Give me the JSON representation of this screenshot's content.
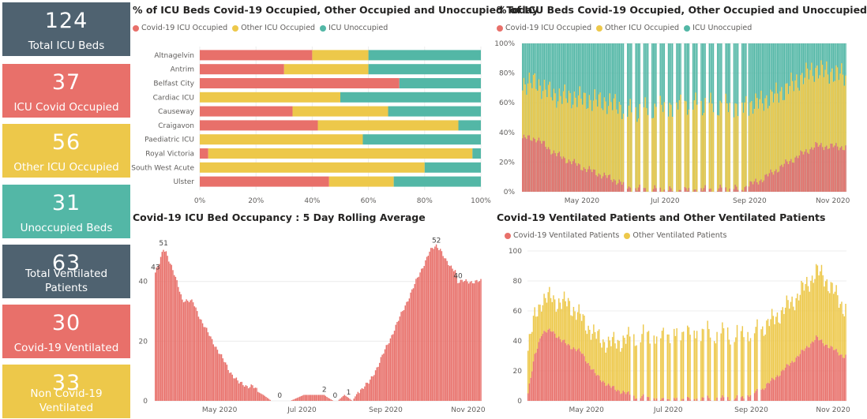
{
  "colors": {
    "covid": "#E8706A",
    "other": "#EDC84A",
    "unoccupied": "#53B7A6",
    "dark": "#4F6270"
  },
  "kpis": [
    {
      "value": "124",
      "label": "Total ICU Beds",
      "color": "#4F6270"
    },
    {
      "value": "37",
      "label": "ICU Covid Occupied",
      "color": "#E8706A"
    },
    {
      "value": "56",
      "label": "Other ICU Occupied",
      "color": "#EDC84A"
    },
    {
      "value": "31",
      "label": "Unoccupied Beds",
      "color": "#53B7A6"
    },
    {
      "value": "63",
      "label": "Total Ventilated Patients",
      "color": "#4F6270"
    },
    {
      "value": "30",
      "label": "Covid-19 Ventilated",
      "color": "#E8706A"
    },
    {
      "value": "33",
      "label": "Non Covid-19 Ventilated",
      "color": "#EDC84A"
    }
  ],
  "chart_data": [
    {
      "type": "bar",
      "orientation": "horizontal",
      "stacked": "100%",
      "title": "% of ICU Beds Covid-19 Occupied, Other Occupied and Unoccupied Today",
      "legend": [
        "Covid-19 ICU Occupied",
        "Other ICU Occupied",
        "ICU Unoccupied"
      ],
      "categories": [
        "Altnagelvin",
        "Antrim",
        "Belfast City",
        "Cardiac ICU",
        "Causeway",
        "Craigavon",
        "Paediatric ICU",
        "Royal Victoria",
        "South West Acute",
        "Ulster"
      ],
      "series": [
        {
          "name": "Covid-19 ICU Occupied",
          "values": [
            40,
            30,
            71,
            0,
            33,
            42,
            0,
            3,
            0,
            46
          ]
        },
        {
          "name": "Other ICU Occupied",
          "values": [
            20,
            30,
            0,
            50,
            34,
            50,
            58,
            94,
            80,
            23
          ]
        },
        {
          "name": "ICU Unoccupied",
          "values": [
            40,
            40,
            29,
            50,
            33,
            8,
            42,
            3,
            20,
            31
          ]
        }
      ],
      "x_ticks": [
        "0%",
        "20%",
        "40%",
        "60%",
        "80%",
        "100%"
      ],
      "xlim": [
        0,
        100
      ],
      "grid": true,
      "legend_position": "top-left"
    },
    {
      "type": "bar",
      "stacked": "100%",
      "title": "% of ICU Beds Covid-19 Occupied, Other Occupied and Unoccupied",
      "legend": [
        "Covid-19 ICU Occupied",
        "Other ICU Occupied",
        "ICU Unoccupied"
      ],
      "x_range": [
        "2020-04-01",
        "2020-11-24"
      ],
      "x_ticks": [
        "May 2020",
        "Jul 2020",
        "Sep 2020",
        "Nov 2020"
      ],
      "y_ticks": [
        "0%",
        "20%",
        "40%",
        "60%",
        "80%",
        "100%"
      ],
      "ylim": [
        0,
        100
      ],
      "series_keypoints": {
        "covid_pct": [
          [
            0,
            36
          ],
          [
            10,
            36
          ],
          [
            25,
            25
          ],
          [
            45,
            16
          ],
          [
            70,
            7
          ],
          [
            80,
            2
          ],
          [
            110,
            1
          ],
          [
            160,
            2
          ],
          [
            175,
            8
          ],
          [
            195,
            20
          ],
          [
            215,
            31
          ],
          [
            238,
            30
          ]
        ],
        "other_pct": [
          [
            0,
            37
          ],
          [
            20,
            38
          ],
          [
            40,
            45
          ],
          [
            60,
            50
          ],
          [
            80,
            52
          ],
          [
            120,
            58
          ],
          [
            160,
            55
          ],
          [
            190,
            50
          ],
          [
            210,
            52
          ],
          [
            238,
            48
          ]
        ]
      },
      "grid": true,
      "legend_position": "top-left"
    },
    {
      "type": "bar",
      "title": "Covid-19 ICU Bed Occupancy : 5 Day Rolling Average",
      "x_range": [
        "2020-03-28",
        "2020-11-24"
      ],
      "x_ticks": [
        "May 2020",
        "Jul 2020",
        "Sep 2020",
        "Nov 2020"
      ],
      "y_ticks": [
        "0",
        "20",
        "40"
      ],
      "ylim": [
        0,
        55
      ],
      "series_keypoints": [
        [
          0,
          43
        ],
        [
          3,
          46
        ],
        [
          6,
          51
        ],
        [
          8,
          50
        ],
        [
          12,
          45
        ],
        [
          18,
          37
        ],
        [
          20,
          34
        ],
        [
          28,
          33
        ],
        [
          35,
          26
        ],
        [
          45,
          18
        ],
        [
          55,
          10
        ],
        [
          62,
          6
        ],
        [
          68,
          5
        ],
        [
          72,
          5
        ],
        [
          76,
          3
        ],
        [
          80,
          2
        ],
        [
          86,
          0
        ],
        [
          100,
          0
        ],
        [
          105,
          1
        ],
        [
          110,
          2
        ],
        [
          120,
          2
        ],
        [
          125,
          2
        ],
        [
          128,
          1
        ],
        [
          132,
          0
        ],
        [
          135,
          0
        ],
        [
          140,
          2
        ],
        [
          143,
          1
        ],
        [
          146,
          0
        ],
        [
          150,
          3
        ],
        [
          158,
          6
        ],
        [
          165,
          12
        ],
        [
          175,
          22
        ],
        [
          185,
          32
        ],
        [
          195,
          42
        ],
        [
          203,
          50
        ],
        [
          208,
          52
        ],
        [
          211,
          51
        ],
        [
          215,
          47
        ],
        [
          218,
          45
        ],
        [
          222,
          44
        ],
        [
          224,
          40
        ]
      ],
      "data_labels": [
        {
          "text": "43",
          "day": 0,
          "value": 43
        },
        {
          "text": "51",
          "day": 6,
          "value": 51
        },
        {
          "text": "0",
          "day": 92,
          "value": 0
        },
        {
          "text": "2",
          "day": 125,
          "value": 2
        },
        {
          "text": "0",
          "day": 133,
          "value": 0
        },
        {
          "text": "1",
          "day": 143,
          "value": 1
        },
        {
          "text": "52",
          "day": 208,
          "value": 52
        },
        {
          "text": "40",
          "day": 224,
          "value": 40
        }
      ],
      "grid": true
    },
    {
      "type": "bar",
      "stacked": true,
      "title": "Covid-19 Ventilated Patients and Other Ventilated Patients",
      "legend": [
        "Covid-19 Ventilated Patients",
        "Other Ventilated Patients"
      ],
      "x_range": [
        "2020-04-01",
        "2020-11-24"
      ],
      "x_ticks": [
        "May 2020",
        "Jul 2020",
        "Sep 2020",
        "Nov 2020"
      ],
      "y_ticks": [
        "0",
        "20",
        "40",
        "60",
        "80",
        "100"
      ],
      "ylim": [
        0,
        100
      ],
      "series_keypoints": {
        "covid": [
          [
            0,
            5
          ],
          [
            5,
            30
          ],
          [
            10,
            45
          ],
          [
            18,
            47
          ],
          [
            25,
            40
          ],
          [
            40,
            32
          ],
          [
            50,
            18
          ],
          [
            60,
            10
          ],
          [
            70,
            6
          ],
          [
            80,
            3
          ],
          [
            100,
            1
          ],
          [
            160,
            2
          ],
          [
            175,
            8
          ],
          [
            190,
            20
          ],
          [
            205,
            33
          ],
          [
            215,
            42
          ],
          [
            225,
            36
          ],
          [
            235,
            30
          ]
        ],
        "other": [
          [
            0,
            30
          ],
          [
            10,
            22
          ],
          [
            20,
            22
          ],
          [
            30,
            28
          ],
          [
            40,
            23
          ],
          [
            60,
            28
          ],
          [
            80,
            40
          ],
          [
            120,
            45
          ],
          [
            160,
            42
          ],
          [
            180,
            40
          ],
          [
            200,
            40
          ],
          [
            220,
            45
          ],
          [
            235,
            33
          ]
        ]
      },
      "grid": true,
      "legend_position": "top-left"
    }
  ]
}
